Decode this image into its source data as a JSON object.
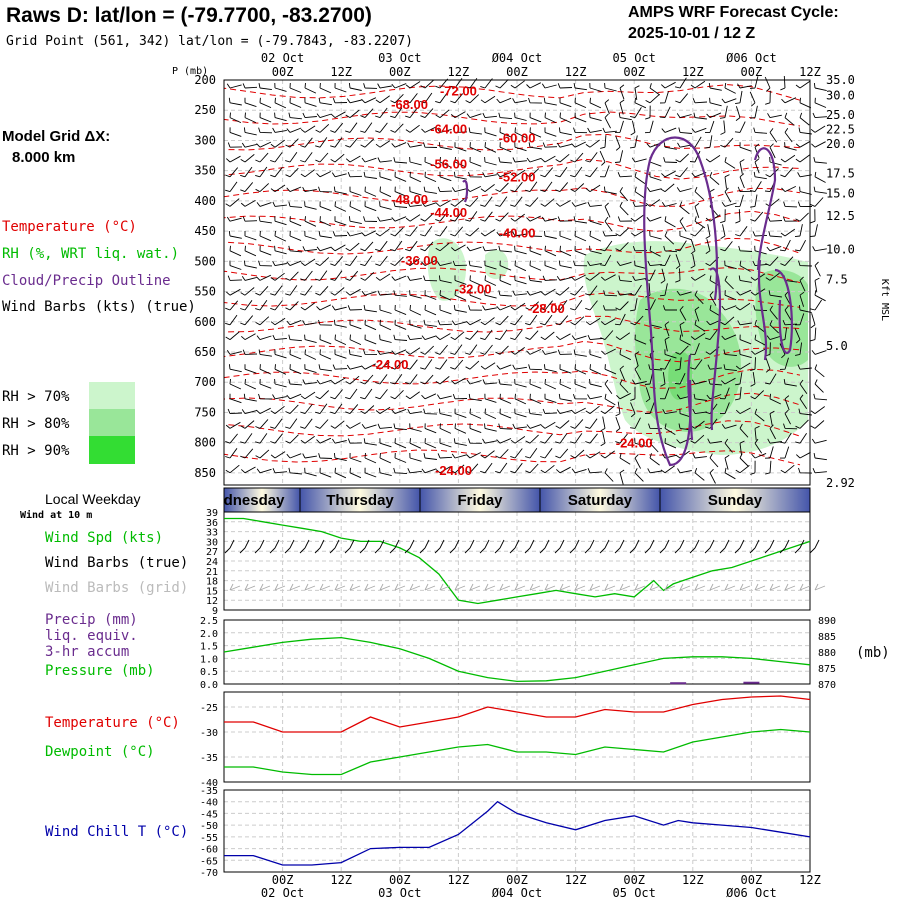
{
  "header": {
    "title": "Raws D:  lat/lon = (-79.7700, -83.2700)",
    "subtitle": "Grid Point (561, 342) lat/lon = (-79.7843, -83.2207)",
    "forecast_label": "AMPS WRF Forecast Cycle:",
    "forecast_cycle": "2025-10-01 / 12  Z",
    "model_grid_label": "Model Grid ΔX:",
    "model_grid_value": "8.000 km"
  },
  "legend": {
    "temperature": "Temperature (°C)",
    "rh": "RH (%, WRT liq. wat.)",
    "cloud": "Cloud/Precip Outline",
    "wind": "Wind Barbs (kts) (true)",
    "rh70": "RH > 70%",
    "rh80": "RH > 80%",
    "rh90": "RH > 90%",
    "colors": {
      "rh70": "#ccf5cc",
      "rh80": "#99e699",
      "rh90": "#33dd33",
      "temp": "#e00000",
      "cloud": "#6a2c8e",
      "wind_green": "#00bb00",
      "dewpoint": "#00bb00",
      "windchill": "#0000aa"
    }
  },
  "time_axis": {
    "top_dates": [
      "02 Oct",
      "03 Oct",
      "Ø04 Oct",
      "05 Oct",
      "Ø06 Oct"
    ],
    "bottom_dates": [
      "02 Oct",
      "03 Oct",
      "Ø04 Oct",
      "05 Oct",
      "Ø06 Oct"
    ],
    "hour_labels": [
      "00Z",
      "12Z",
      "00Z",
      "12Z",
      "00Z",
      "12Z",
      "00Z",
      "12Z",
      "00Z",
      "12Z"
    ],
    "hour_offsets": [
      12,
      24,
      36,
      48,
      60,
      72,
      84,
      96,
      108,
      120
    ],
    "range_hours": [
      0,
      120
    ]
  },
  "weekday": {
    "label": "Local Weekday",
    "days": [
      "dnesday",
      "Thursday",
      "Friday",
      "Saturday",
      "Sunday"
    ]
  },
  "chart_data": [
    {
      "type": "heatmap",
      "title": "",
      "ylabel": "P (mb)",
      "ylabel_right": "Kft MSL",
      "pressure_ticks": [
        200,
        250,
        300,
        350,
        400,
        450,
        500,
        550,
        600,
        650,
        700,
        750,
        800,
        850
      ],
      "height_ticks": [
        "35.0",
        "30.0",
        "25.0",
        "22.5",
        "20.0",
        "17.5",
        "15.0",
        "12.5",
        "10.0",
        "7.5",
        "5.0",
        "2.92"
      ],
      "height_tick_pressures": [
        200,
        226,
        258,
        282,
        306,
        355,
        388,
        425,
        480,
        530,
        640,
        870
      ],
      "ylim": [
        200,
        870
      ],
      "temperature_labels": [
        {
          "text": "-72.00",
          "t": 48,
          "p": 217
        },
        {
          "text": "-68.00",
          "t": 38,
          "p": 240
        },
        {
          "text": "-64.00",
          "t": 46,
          "p": 280
        },
        {
          "text": "-60.00",
          "t": 60,
          "p": 295
        },
        {
          "text": "-56.00",
          "t": 46,
          "p": 338
        },
        {
          "text": "-52.00",
          "t": 60,
          "p": 360
        },
        {
          "text": "-48.00",
          "t": 38,
          "p": 397
        },
        {
          "text": "-44.00",
          "t": 46,
          "p": 418
        },
        {
          "text": "-40.00",
          "t": 60,
          "p": 452
        },
        {
          "text": "-36.00",
          "t": 40,
          "p": 498
        },
        {
          "text": "-32.00",
          "t": 51,
          "p": 545
        },
        {
          "text": "-28.00",
          "t": 66,
          "p": 577
        },
        {
          "text": "-24.00",
          "t": 34,
          "p": 670
        },
        {
          "text": "-24.00",
          "t": 84,
          "p": 800
        },
        {
          "text": "-24.00",
          "t": 47,
          "p": 845
        }
      ]
    },
    {
      "type": "line",
      "title": "Wind at 10 m",
      "series": [
        {
          "name": "Wind Spd (kts)",
          "x": [
            0,
            4,
            8,
            12,
            16,
            20,
            24,
            28,
            32,
            36,
            40,
            44,
            48,
            52,
            56,
            60,
            64,
            68,
            72,
            76,
            80,
            84,
            88,
            90,
            92,
            96,
            100,
            104,
            108,
            112,
            116,
            120
          ],
          "values": [
            37,
            37,
            36,
            35,
            34,
            33,
            31,
            30,
            30,
            28,
            25,
            20,
            12,
            11,
            12,
            13,
            14,
            15,
            14,
            13,
            14,
            13,
            18,
            15,
            17,
            19,
            21,
            22,
            24,
            26,
            28,
            30
          ]
        }
      ],
      "labels": [
        "Wind Spd (kts)",
        "Wind Barbs (true)",
        "Wind Barbs (grid)"
      ],
      "yticks": [
        9,
        12,
        15,
        18,
        21,
        24,
        27,
        30,
        33,
        36,
        39
      ],
      "ylim": [
        9,
        39
      ]
    },
    {
      "type": "line",
      "labels": [
        "Precip (mm)",
        "liq. equiv.",
        "3-hr accum",
        "Pressure (mb)"
      ],
      "yticks_left": [
        "0.0",
        "0.5",
        "1.0",
        "1.5",
        "2.0",
        "2.5"
      ],
      "yticks_right": [
        "870",
        "875",
        "880",
        "885",
        "890"
      ],
      "right_unit": "(mb)",
      "ylim": [
        0,
        2.5
      ],
      "ylim_right": [
        870,
        890
      ],
      "series": [
        {
          "name": "Pressure (mb)",
          "x": [
            0,
            6,
            12,
            18,
            24,
            30,
            36,
            42,
            48,
            54,
            60,
            66,
            72,
            78,
            84,
            90,
            96,
            102,
            108,
            114,
            120
          ],
          "values": [
            880,
            881.5,
            883,
            884,
            884.5,
            883,
            881,
            878,
            874,
            872,
            870.8,
            871,
            872,
            874,
            876,
            878,
            878.5,
            878.5,
            878,
            877,
            876
          ]
        }
      ],
      "precip": [
        {
          "t": 93,
          "mm": 0.03
        },
        {
          "t": 108,
          "mm": 0.05
        }
      ]
    },
    {
      "type": "line",
      "labels": [
        "Temperature (°C)",
        "Dewpoint (°C)"
      ],
      "yticks": [
        -40,
        -35,
        -30,
        -25
      ],
      "ylim": [
        -40,
        -22
      ],
      "series": [
        {
          "name": "Temperature (°C)",
          "x": [
            0,
            6,
            12,
            18,
            24,
            30,
            36,
            42,
            48,
            54,
            60,
            66,
            72,
            78,
            84,
            90,
            96,
            102,
            108,
            114,
            120
          ],
          "values": [
            -28,
            -28,
            -30,
            -30,
            -30,
            -27,
            -29,
            -28,
            -27,
            -25,
            -26,
            -27,
            -27,
            -25.5,
            -26,
            -26,
            -24.5,
            -23.5,
            -23,
            -22.8,
            -23.5
          ]
        },
        {
          "name": "Dewpoint (°C)",
          "x": [
            0,
            6,
            12,
            18,
            24,
            30,
            36,
            42,
            48,
            54,
            60,
            66,
            72,
            78,
            84,
            90,
            96,
            102,
            108,
            114,
            120
          ],
          "values": [
            -37,
            -37,
            -38,
            -38.5,
            -38.5,
            -36,
            -35,
            -34,
            -33,
            -32.5,
            -34,
            -34,
            -34.5,
            -33,
            -33.5,
            -34,
            -32,
            -31,
            -30,
            -29.5,
            -30
          ]
        }
      ]
    },
    {
      "type": "line",
      "labels": [
        "Wind Chill T (°C)"
      ],
      "yticks": [
        -70,
        -65,
        -60,
        -55,
        -50,
        -45,
        -40,
        -35
      ],
      "ylim": [
        -70,
        -35
      ],
      "series": [
        {
          "name": "Wind Chill T (°C)",
          "x": [
            0,
            6,
            12,
            18,
            24,
            30,
            36,
            42,
            48,
            54,
            56,
            60,
            66,
            72,
            78,
            84,
            90,
            93,
            96,
            102,
            108,
            114,
            120
          ],
          "values": [
            -63,
            -63,
            -67,
            -67,
            -66,
            -60,
            -59.5,
            -59.5,
            -54,
            -44,
            -40,
            -45,
            -49,
            -52,
            -48,
            -46,
            -50,
            -48,
            -49,
            -50,
            -51,
            -53,
            -55
          ]
        }
      ]
    }
  ]
}
